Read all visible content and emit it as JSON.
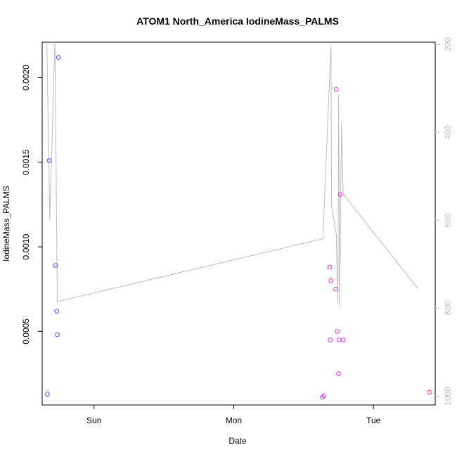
{
  "chart_data": {
    "type": "scatter",
    "title": "ATOM1 North_America IodineMass_PALMS",
    "xlabel": "Date",
    "ylabel": "IodineMass_PALMS",
    "x_tick_labels": [
      "Sun",
      "Mon",
      "Tue"
    ],
    "x_ticks_hours": [
      24,
      48,
      72
    ],
    "xlim_hours": [
      15.1,
      82.6
    ],
    "ylim": [
      6.5e-05,
      0.00221
    ],
    "y_ticks": [
      0.0005,
      0.001,
      0.0015,
      0.002
    ],
    "y_tick_labels": [
      "0.0005",
      "0.0010",
      "0.0015",
      "0.0020"
    ],
    "y2_label": "",
    "y2lim": [
      1020,
      195
    ],
    "y2_ticks": [
      200,
      400,
      600,
      800,
      1000
    ],
    "y2_tick_labels": [
      "200",
      "400",
      "600",
      "800",
      "1000"
    ],
    "grid": false,
    "legend": "none",
    "colors": {
      "points_early": "#7a30ff",
      "points_late": "#e030e0",
      "line": "#bdbdbd",
      "axes": "#000000",
      "right_axis": "#bdbdbd"
    },
    "points": [
      {
        "x": 16.0,
        "y": 0.00013
      },
      {
        "x": 16.3,
        "y": 0.00151
      },
      {
        "x": 17.4,
        "y": 0.00089
      },
      {
        "x": 17.6,
        "y": 0.00062
      },
      {
        "x": 17.7,
        "y": 0.00048
      },
      {
        "x": 17.9,
        "y": 0.00212
      },
      {
        "x": 63.2,
        "y": 0.00011
      },
      {
        "x": 63.5,
        "y": 0.00012
      },
      {
        "x": 64.5,
        "y": 0.00088
      },
      {
        "x": 64.6,
        "y": 0.00045
      },
      {
        "x": 64.7,
        "y": 0.0008
      },
      {
        "x": 65.5,
        "y": 0.00075
      },
      {
        "x": 65.6,
        "y": 0.00193
      },
      {
        "x": 65.8,
        "y": 0.0005
      },
      {
        "x": 66.0,
        "y": 0.00025
      },
      {
        "x": 66.1,
        "y": 0.00045
      },
      {
        "x": 66.3,
        "y": 0.00131
      },
      {
        "x": 66.8,
        "y": 0.00045
      },
      {
        "x": 81.6,
        "y": 0.00014
      }
    ],
    "line_series": {
      "axis": "right",
      "points": [
        {
          "x": 15.9,
          "y": 190
        },
        {
          "x": 16.4,
          "y": 600
        },
        {
          "x": 17.3,
          "y": 190
        },
        {
          "x": 17.7,
          "y": 785
        },
        {
          "x": 63.3,
          "y": 642
        },
        {
          "x": 64.7,
          "y": 200
        },
        {
          "x": 64.8,
          "y": 570
        },
        {
          "x": 65.6,
          "y": 630
        },
        {
          "x": 65.9,
          "y": 790
        },
        {
          "x": 66.0,
          "y": 315
        },
        {
          "x": 66.2,
          "y": 797
        },
        {
          "x": 66.5,
          "y": 380
        },
        {
          "x": 66.8,
          "y": 540
        },
        {
          "x": 79.6,
          "y": 755
        }
      ]
    }
  }
}
